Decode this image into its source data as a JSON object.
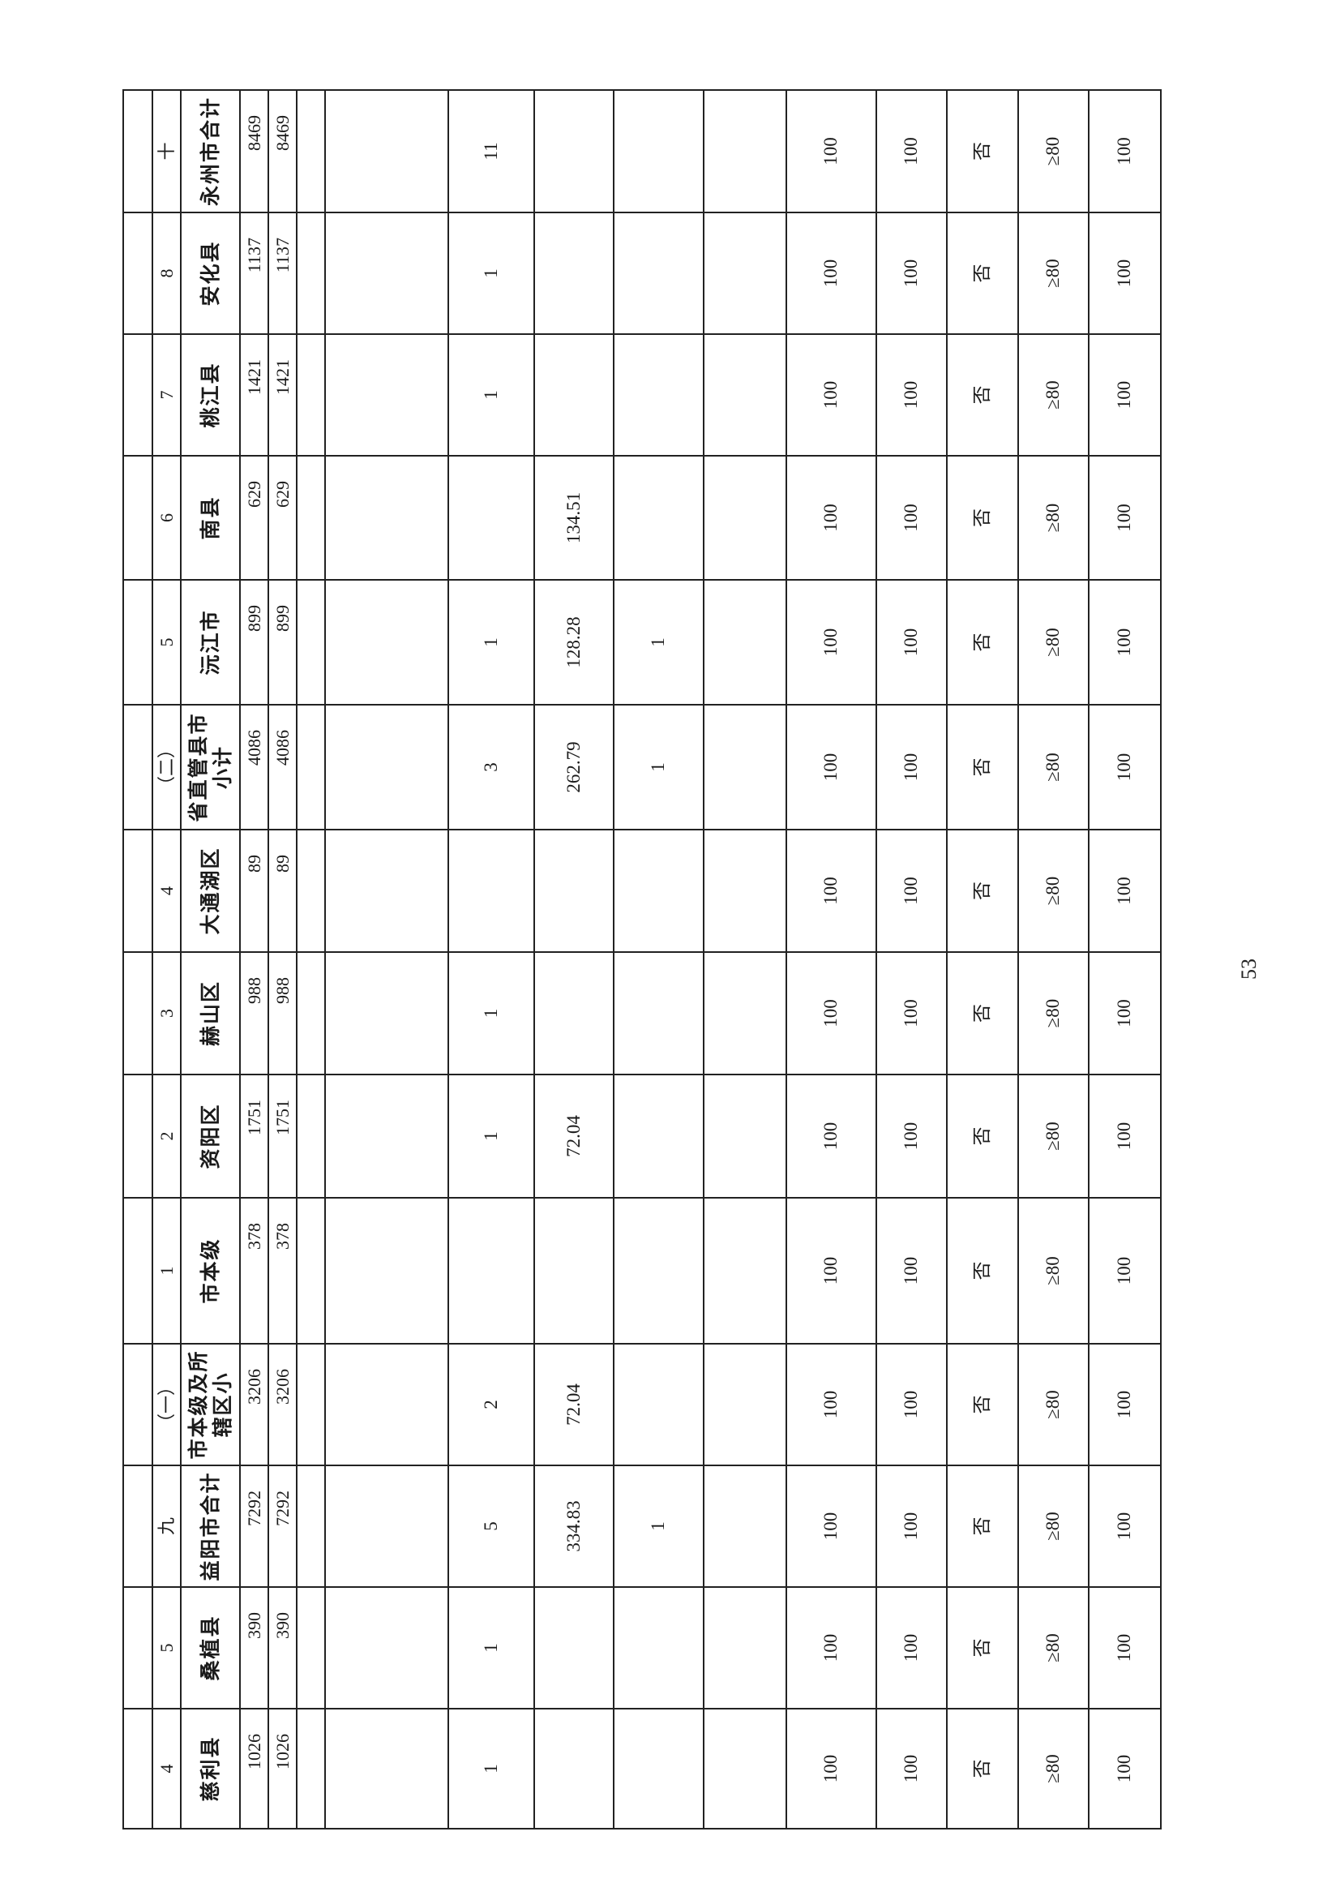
{
  "page_number": "53",
  "table": {
    "columns": [
      {
        "index": "4",
        "name": "慈利县",
        "value_a": "1026",
        "value_b": "1026",
        "count": "1",
        "amount": "",
        "flag_count": "",
        "pct_a": "100",
        "pct_b": "100",
        "yes_no": "否",
        "threshold": "≥80",
        "pct_c": "100"
      },
      {
        "index": "5",
        "name": "桑植县",
        "value_a": "390",
        "value_b": "390",
        "count": "1",
        "amount": "",
        "flag_count": "",
        "pct_a": "100",
        "pct_b": "100",
        "yes_no": "否",
        "threshold": "≥80",
        "pct_c": "100"
      },
      {
        "index": "九",
        "name": "益阳市合计",
        "value_a": "7292",
        "value_b": "7292",
        "count": "5",
        "amount": "334.83",
        "flag_count": "1",
        "pct_a": "100",
        "pct_b": "100",
        "yes_no": "否",
        "threshold": "≥80",
        "pct_c": "100"
      },
      {
        "index": "（一）",
        "name": "市本级及所辖区小",
        "value_a": "3206",
        "value_b": "3206",
        "count": "2",
        "amount": "72.04",
        "flag_count": "",
        "pct_a": "100",
        "pct_b": "100",
        "yes_no": "否",
        "threshold": "≥80",
        "pct_c": "100"
      },
      {
        "index": "1",
        "name": "市本级",
        "value_a": "378",
        "value_b": "378",
        "count": "",
        "amount": "",
        "flag_count": "",
        "pct_a": "100",
        "pct_b": "100",
        "yes_no": "否",
        "threshold": "≥80",
        "pct_c": "100"
      },
      {
        "index": "2",
        "name": "资阳区",
        "value_a": "1751",
        "value_b": "1751",
        "count": "1",
        "amount": "72.04",
        "flag_count": "",
        "pct_a": "100",
        "pct_b": "100",
        "yes_no": "否",
        "threshold": "≥80",
        "pct_c": "100"
      },
      {
        "index": "3",
        "name": "赫山区",
        "value_a": "988",
        "value_b": "988",
        "count": "1",
        "amount": "",
        "flag_count": "",
        "pct_a": "100",
        "pct_b": "100",
        "yes_no": "否",
        "threshold": "≥80",
        "pct_c": "100"
      },
      {
        "index": "4",
        "name": "大通湖区",
        "value_a": "89",
        "value_b": "89",
        "count": "",
        "amount": "",
        "flag_count": "",
        "pct_a": "100",
        "pct_b": "100",
        "yes_no": "否",
        "threshold": "≥80",
        "pct_c": "100"
      },
      {
        "index": "（二）",
        "name": "省直管县市小计",
        "value_a": "4086",
        "value_b": "4086",
        "count": "3",
        "amount": "262.79",
        "flag_count": "1",
        "pct_a": "100",
        "pct_b": "100",
        "yes_no": "否",
        "threshold": "≥80",
        "pct_c": "100"
      },
      {
        "index": "5",
        "name": "沅江市",
        "value_a": "899",
        "value_b": "899",
        "count": "1",
        "amount": "128.28",
        "flag_count": "1",
        "pct_a": "100",
        "pct_b": "100",
        "yes_no": "否",
        "threshold": "≥80",
        "pct_c": "100"
      },
      {
        "index": "6",
        "name": "南县",
        "value_a": "629",
        "value_b": "629",
        "count": "",
        "amount": "134.51",
        "flag_count": "",
        "pct_a": "100",
        "pct_b": "100",
        "yes_no": "否",
        "threshold": "≥80",
        "pct_c": "100"
      },
      {
        "index": "7",
        "name": "桃江县",
        "value_a": "1421",
        "value_b": "1421",
        "count": "1",
        "amount": "",
        "flag_count": "",
        "pct_a": "100",
        "pct_b": "100",
        "yes_no": "否",
        "threshold": "≥80",
        "pct_c": "100"
      },
      {
        "index": "8",
        "name": "安化县",
        "value_a": "1137",
        "value_b": "1137",
        "count": "1",
        "amount": "",
        "flag_count": "",
        "pct_a": "100",
        "pct_b": "100",
        "yes_no": "否",
        "threshold": "≥80",
        "pct_c": "100"
      },
      {
        "index": "十",
        "name": "永州市合计",
        "value_a": "8469",
        "value_b": "8469",
        "count": "11",
        "amount": "",
        "flag_count": "",
        "pct_a": "100",
        "pct_b": "100",
        "yes_no": "否",
        "threshold": "≥80",
        "pct_c": "100"
      }
    ]
  }
}
